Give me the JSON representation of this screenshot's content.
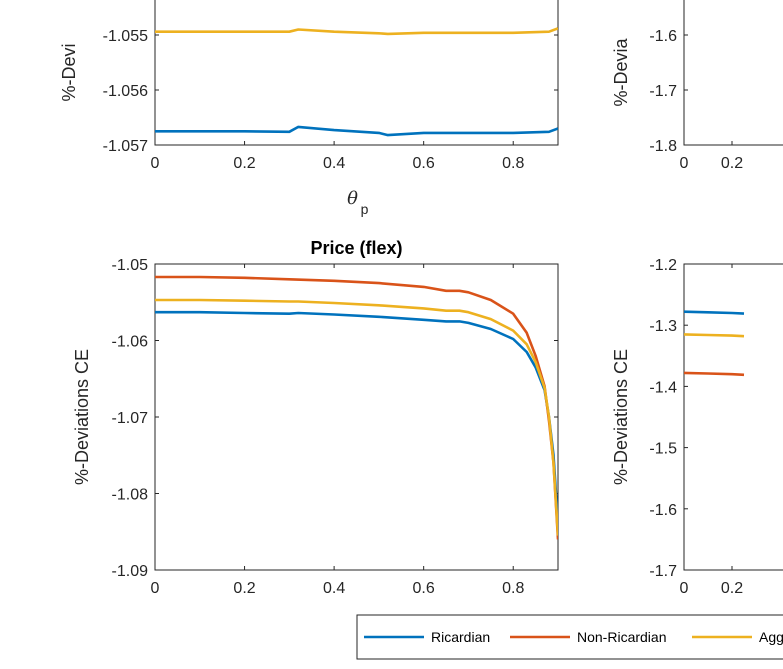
{
  "colors": {
    "ricardian": "#0072BD",
    "non_ricardian": "#D95319",
    "aggregate": "#EDB120",
    "axis": "#262626"
  },
  "legend": {
    "items": [
      "Ricardian",
      "Non-Ricardian",
      "Agg"
    ],
    "placement": "bottom"
  },
  "chart_data": [
    {
      "id": "top-left",
      "type": "line",
      "title": "",
      "ylabel": "%-Devi",
      "xlabel": "θ",
      "xlabel_sub": "p",
      "xlim": [
        0,
        0.9
      ],
      "ylim": [
        -1.057,
        -1.054
      ],
      "xticks": [
        "0",
        "0.2",
        "0.4",
        "0.6",
        "0.8"
      ],
      "yticks": [
        "-1.055",
        "-1.056",
        "-1.057"
      ],
      "series": [
        {
          "name": "Ricardian",
          "x": [
            0,
            0.1,
            0.2,
            0.3,
            0.32,
            0.4,
            0.5,
            0.52,
            0.6,
            0.7,
            0.8,
            0.88,
            0.9
          ],
          "values": [
            -1.05675,
            -1.05675,
            -1.05675,
            -1.05676,
            -1.05667,
            -1.05673,
            -1.05678,
            -1.05682,
            -1.05678,
            -1.05678,
            -1.05678,
            -1.05676,
            -1.0567
          ]
        },
        {
          "name": "Aggregate",
          "x": [
            0,
            0.1,
            0.2,
            0.3,
            0.32,
            0.4,
            0.5,
            0.52,
            0.6,
            0.7,
            0.8,
            0.88,
            0.9
          ],
          "values": [
            -1.05494,
            -1.05494,
            -1.05494,
            -1.05494,
            -1.0549,
            -1.05494,
            -1.05497,
            -1.05498,
            -1.05496,
            -1.05496,
            -1.05496,
            -1.05494,
            -1.05488
          ]
        }
      ]
    },
    {
      "id": "top-right",
      "type": "line",
      "title": "",
      "ylabel": "%-Devia",
      "xlim": [
        0,
        0.9
      ],
      "ylim": [
        -1.8,
        -1.5
      ],
      "xticks": [
        "0",
        "0.2"
      ],
      "yticks": [
        "-1.6",
        "-1.7",
        "-1.8"
      ],
      "series": []
    },
    {
      "id": "bottom-left",
      "type": "line",
      "title": "Price (flex)",
      "ylabel": "%-Deviations CE",
      "xlim": [
        0,
        0.9
      ],
      "ylim": [
        -1.09,
        -1.05
      ],
      "xticks": [
        "0",
        "0.2",
        "0.4",
        "0.6",
        "0.8"
      ],
      "yticks": [
        "-1.05",
        "-1.06",
        "-1.07",
        "-1.08",
        "-1.09"
      ],
      "series": [
        {
          "name": "Ricardian",
          "x": [
            0,
            0.1,
            0.2,
            0.3,
            0.32,
            0.4,
            0.5,
            0.6,
            0.65,
            0.68,
            0.7,
            0.75,
            0.8,
            0.83,
            0.85,
            0.87,
            0.88,
            0.89,
            0.9
          ],
          "values": [
            -1.0563,
            -1.0563,
            -1.0564,
            -1.0565,
            -1.0564,
            -1.0566,
            -1.0569,
            -1.0573,
            -1.0575,
            -1.0575,
            -1.0577,
            -1.0585,
            -1.0598,
            -1.0615,
            -1.0635,
            -1.0665,
            -1.07,
            -1.075,
            -1.084
          ]
        },
        {
          "name": "Non-Ricardian",
          "x": [
            0,
            0.1,
            0.2,
            0.3,
            0.4,
            0.5,
            0.6,
            0.65,
            0.68,
            0.7,
            0.75,
            0.8,
            0.83,
            0.85,
            0.87,
            0.88,
            0.89,
            0.9
          ],
          "values": [
            -1.0517,
            -1.0517,
            -1.0518,
            -1.052,
            -1.0522,
            -1.0525,
            -1.053,
            -1.0535,
            -1.0535,
            -1.0537,
            -1.0547,
            -1.0565,
            -1.059,
            -1.062,
            -1.066,
            -1.0705,
            -1.076,
            -1.086
          ]
        },
        {
          "name": "Aggregate",
          "x": [
            0,
            0.1,
            0.2,
            0.3,
            0.32,
            0.4,
            0.5,
            0.6,
            0.65,
            0.68,
            0.7,
            0.75,
            0.8,
            0.83,
            0.85,
            0.87,
            0.88,
            0.89,
            0.9
          ],
          "values": [
            -1.0547,
            -1.0547,
            -1.0548,
            -1.0549,
            -1.0549,
            -1.0551,
            -1.0554,
            -1.0558,
            -1.0561,
            -1.0561,
            -1.0563,
            -1.0572,
            -1.0587,
            -1.0605,
            -1.0628,
            -1.0662,
            -1.07,
            -1.076,
            -1.0855
          ]
        }
      ]
    },
    {
      "id": "bottom-right",
      "type": "line",
      "title": "",
      "ylabel": "%-Deviations CE",
      "xlim": [
        0,
        0.9
      ],
      "ylim": [
        -1.7,
        -1.2
      ],
      "xticks": [
        "0",
        "0.2"
      ],
      "yticks": [
        "-1.2",
        "-1.3",
        "-1.4",
        "-1.5",
        "-1.6",
        "-1.7"
      ],
      "series": [
        {
          "name": "Ricardian",
          "x": [
            0,
            0.1,
            0.2,
            0.25
          ],
          "values": [
            -1.278,
            -1.279,
            -1.28,
            -1.281
          ]
        },
        {
          "name": "Non-Ricardian",
          "x": [
            0,
            0.1,
            0.2,
            0.25
          ],
          "values": [
            -1.378,
            -1.379,
            -1.38,
            -1.381
          ]
        },
        {
          "name": "Aggregate",
          "x": [
            0,
            0.1,
            0.2,
            0.25
          ],
          "values": [
            -1.315,
            -1.316,
            -1.317,
            -1.318
          ]
        }
      ]
    }
  ]
}
